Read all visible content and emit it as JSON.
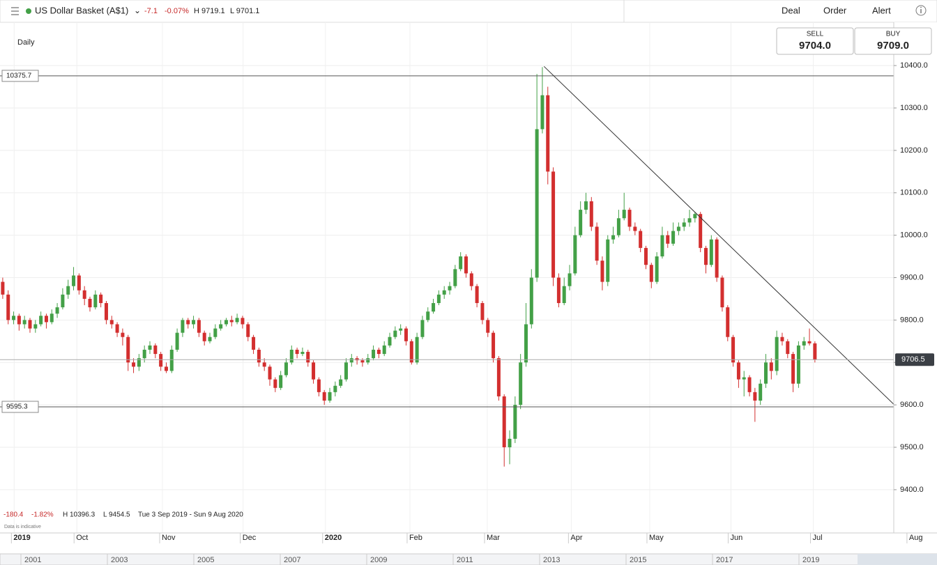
{
  "chart_data": {
    "type": "candlestick",
    "title": "US Dollar Basket (A$1)",
    "header": {
      "change": "-7.1",
      "change_pct": "-0.07%",
      "high": "H 9719.1",
      "low": "L 9701.1"
    },
    "buttons": [
      "Deal",
      "Order",
      "Alert"
    ],
    "interval": "Daily",
    "quote": {
      "sell_label": "SELL",
      "sell": "9704.0",
      "buy_label": "BUY",
      "buy": "9709.0"
    },
    "footer": {
      "change": "-180.4",
      "change_pct": "-1.82%",
      "high": "H 10396.3",
      "low": "L 9454.5",
      "range": "Tue 3 Sep 2019 - Sun 9 Aug 2020",
      "note": "Data is indicative"
    },
    "up_color": "#43a047",
    "down_color": "#d32f2f",
    "open": [
      9890,
      9860,
      9800,
      9810,
      9790,
      9800,
      9780,
      9790,
      9810,
      9795,
      9815,
      9830,
      9860,
      9880,
      9905,
      9870,
      9850,
      9830,
      9860,
      9840,
      9800,
      9790,
      9770,
      9760,
      9700,
      9690,
      9710,
      9730,
      9740,
      9720,
      9690,
      9680,
      9730,
      9770,
      9800,
      9790,
      9800,
      9770,
      9750,
      9760,
      9780,
      9790,
      9800,
      9795,
      9805,
      9790,
      9760,
      9730,
      9700,
      9690,
      9660,
      9640,
      9670,
      9700,
      9730,
      9720,
      9725,
      9700,
      9660,
      9630,
      9610,
      9630,
      9645,
      9660,
      9700,
      9710,
      9705,
      9700,
      9710,
      9730,
      9720,
      9740,
      9760,
      9775,
      9780,
      9750,
      9700,
      9760,
      9800,
      9820,
      9840,
      9860,
      9870,
      9880,
      9920,
      9950,
      9910,
      9880,
      9840,
      9800,
      9770,
      9710,
      9620,
      9500,
      9520,
      9600,
      9700,
      9790,
      9900,
      10250,
      10330,
      10150,
      9900,
      9840,
      9880,
      9910,
      10000,
      10060,
      10080,
      10020,
      9940,
      9890,
      9990,
      10000,
      10040,
      10060,
      10020,
      10010,
      9970,
      9930,
      9890,
      9950,
      10000,
      9980,
      10010,
      10020,
      10030,
      10040,
      10050,
      9970,
      9930,
      9990,
      9900,
      9830,
      9760,
      9700,
      9660,
      9665,
      9630,
      9610,
      9650,
      9700,
      9680,
      9760,
      9750,
      9720,
      9650,
      9740,
      9750,
      9745
    ],
    "high": [
      9900,
      9870,
      9820,
      9815,
      9810,
      9805,
      9800,
      9820,
      9815,
      9825,
      9840,
      9875,
      9895,
      9925,
      9910,
      9880,
      9855,
      9870,
      9865,
      9845,
      9810,
      9795,
      9780,
      9765,
      9710,
      9720,
      9740,
      9750,
      9745,
      9725,
      9700,
      9740,
      9780,
      9805,
      9805,
      9810,
      9805,
      9775,
      9770,
      9790,
      9800,
      9805,
      9810,
      9815,
      9810,
      9795,
      9765,
      9735,
      9710,
      9695,
      9665,
      9680,
      9710,
      9740,
      9735,
      9735,
      9730,
      9705,
      9665,
      9635,
      9640,
      9655,
      9670,
      9710,
      9720,
      9715,
      9710,
      9720,
      9740,
      9735,
      9750,
      9770,
      9785,
      9790,
      9785,
      9755,
      9770,
      9810,
      9830,
      9850,
      9870,
      9880,
      9890,
      9930,
      9960,
      9955,
      9915,
      9885,
      9845,
      9805,
      9775,
      9715,
      9625,
      9540,
      9620,
      9720,
      9840,
      9920,
      10380,
      10396.3,
      10350,
      10160,
      9910,
      9900,
      9930,
      10020,
      10080,
      10100,
      10090,
      10030,
      9950,
      10000,
      10020,
      10060,
      10100,
      10065,
      10030,
      10015,
      9975,
      9935,
      9960,
      10020,
      10010,
      10030,
      10030,
      10040,
      10060,
      10055,
      10055,
      9975,
      10000,
      9995,
      9905,
      9835,
      9765,
      9705,
      9680,
      9670,
      9640,
      9660,
      9720,
      9710,
      9775,
      9770,
      9755,
      9725,
      9750,
      9760,
      9780,
      9750
    ],
    "low": [
      9850,
      9790,
      9790,
      9775,
      9780,
      9770,
      9770,
      9785,
      9780,
      9790,
      9805,
      9825,
      9850,
      9870,
      9860,
      9835,
      9820,
      9825,
      9830,
      9790,
      9780,
      9760,
      9740,
      9680,
      9675,
      9680,
      9700,
      9720,
      9710,
      9680,
      9675,
      9675,
      9725,
      9760,
      9780,
      9780,
      9760,
      9740,
      9745,
      9755,
      9775,
      9785,
      9785,
      9790,
      9780,
      9750,
      9720,
      9690,
      9680,
      9645,
      9630,
      9635,
      9665,
      9695,
      9710,
      9715,
      9690,
      9650,
      9620,
      9600,
      9605,
      9620,
      9640,
      9655,
      9690,
      9695,
      9690,
      9695,
      9705,
      9710,
      9715,
      9735,
      9755,
      9765,
      9740,
      9695,
      9695,
      9755,
      9795,
      9815,
      9835,
      9850,
      9860,
      9875,
      9915,
      9900,
      9870,
      9830,
      9790,
      9760,
      9700,
      9610,
      9454.5,
      9460,
      9510,
      9590,
      9690,
      9780,
      9890,
      10240,
      10120,
      9880,
      9830,
      9835,
      9870,
      9905,
      9995,
      10050,
      10010,
      9930,
      9870,
      9880,
      9980,
      9995,
      10035,
      10010,
      10000,
      9960,
      9920,
      9875,
      9885,
      9945,
      9970,
      9975,
      10000,
      10010,
      10020,
      10030,
      9960,
      9910,
      9925,
      9890,
      9820,
      9750,
      9690,
      9640,
      9620,
      9620,
      9560,
      9600,
      9640,
      9660,
      9670,
      9740,
      9710,
      9630,
      9640,
      9730,
      9740,
      9700
    ],
    "close": [
      9860,
      9800,
      9810,
      9790,
      9800,
      9780,
      9790,
      9810,
      9795,
      9815,
      9830,
      9860,
      9880,
      9905,
      9870,
      9850,
      9830,
      9860,
      9840,
      9800,
      9790,
      9770,
      9760,
      9700,
      9690,
      9710,
      9730,
      9740,
      9720,
      9690,
      9680,
      9730,
      9770,
      9800,
      9790,
      9800,
      9770,
      9750,
      9760,
      9780,
      9790,
      9800,
      9795,
      9805,
      9790,
      9760,
      9730,
      9700,
      9690,
      9660,
      9640,
      9670,
      9700,
      9730,
      9720,
      9725,
      9700,
      9660,
      9630,
      9610,
      9630,
      9645,
      9660,
      9700,
      9710,
      9705,
      9700,
      9710,
      9730,
      9720,
      9740,
      9760,
      9775,
      9780,
      9750,
      9700,
      9760,
      9800,
      9820,
      9840,
      9860,
      9870,
      9880,
      9920,
      9950,
      9910,
      9880,
      9840,
      9800,
      9770,
      9710,
      9620,
      9500,
      9520,
      9600,
      9700,
      9790,
      9900,
      10250,
      10330,
      10150,
      9900,
      9840,
      9880,
      9910,
      10000,
      10060,
      10080,
      10020,
      9940,
      9890,
      9990,
      10000,
      10040,
      10060,
      10020,
      10010,
      9970,
      9930,
      9890,
      9950,
      10000,
      9980,
      10010,
      10020,
      10030,
      10040,
      10050,
      9970,
      9930,
      9990,
      9900,
      9830,
      9760,
      9700,
      9660,
      9665,
      9630,
      9610,
      9650,
      9700,
      9680,
      9760,
      9750,
      9720,
      9650,
      9740,
      9750,
      9745,
      9706.5
    ],
    "xlim": [
      -0.5,
      171.4
    ],
    "ylim": [
      9298,
      10502
    ],
    "xticks": [
      {
        "value": 2.1,
        "label": "2019"
      },
      {
        "value": 13.6,
        "label": "Oct"
      },
      {
        "value": 29.3,
        "label": "Nov"
      },
      {
        "value": 44.1,
        "label": "Dec"
      },
      {
        "value": 59.2,
        "label": "2020"
      },
      {
        "value": 74.7,
        "label": "Feb"
      },
      {
        "value": 88.9,
        "label": "Mar"
      },
      {
        "value": 104.3,
        "label": "Apr"
      },
      {
        "value": 118.7,
        "label": "May"
      },
      {
        "value": 133.6,
        "label": "Jun"
      },
      {
        "value": 148.7,
        "label": "Jul"
      },
      {
        "value": 166.4,
        "label": "Aug"
      }
    ],
    "yticks": [
      {
        "value": 9400,
        "label": "9400.0"
      },
      {
        "value": 9500,
        "label": "9500.0"
      },
      {
        "value": 9600,
        "label": "9600.0"
      },
      {
        "value": 9700,
        "label": "9700.0"
      },
      {
        "value": 9800,
        "label": "9800.0"
      },
      {
        "value": 9900,
        "label": "9900.0"
      },
      {
        "value": 10000,
        "label": "10000.0"
      },
      {
        "value": 10100,
        "label": "10100.0"
      },
      {
        "value": 10200,
        "label": "10200.0"
      },
      {
        "value": 10300,
        "label": "10300.0"
      },
      {
        "value": 10400,
        "label": "10400.0"
      }
    ],
    "levels": [
      {
        "value": 10375.7,
        "label": "10375.7"
      },
      {
        "value": 9595.3,
        "label": "9595.3"
      }
    ],
    "current": {
      "value": 9706.5,
      "label": "9706.5"
    },
    "trendline": {
      "x": [
        99.3,
        171.4
      ],
      "y": [
        10398,
        9503
      ]
    },
    "grid": true,
    "navigator_years": [
      "2001",
      "2003",
      "2005",
      "2007",
      "2009",
      "2011",
      "2013",
      "2015",
      "2017",
      "2019"
    ]
  }
}
